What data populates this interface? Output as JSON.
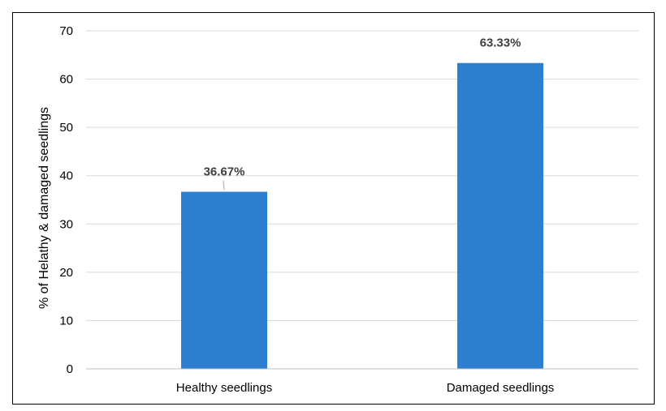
{
  "chart_data": {
    "type": "bar",
    "title": "",
    "xlabel": "",
    "ylabel": "% of Helathy & damaged seedlings",
    "categories": [
      "Healthy seedlings",
      "Damaged seedlings"
    ],
    "values": [
      36.67,
      63.33
    ],
    "data_labels": [
      "36.67%",
      "63.33%"
    ],
    "ylim": [
      0,
      70
    ],
    "yticks": [
      0,
      10,
      20,
      30,
      40,
      50,
      60,
      70
    ],
    "grid": "horizontal",
    "legend": "none",
    "bar_color": "#2e7fd0"
  }
}
